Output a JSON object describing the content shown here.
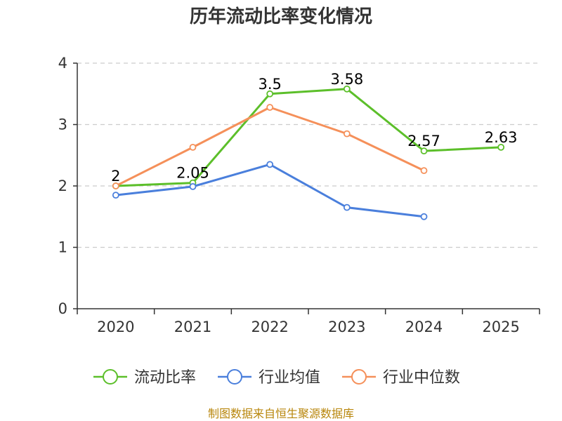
{
  "chart_data": {
    "type": "line",
    "title": "历年流动比率变化情况",
    "categories": [
      "2020",
      "2021",
      "2022",
      "2023",
      "2024",
      "2025"
    ],
    "yticks": [
      "0",
      "1",
      "2",
      "3",
      "4"
    ],
    "ylim": [
      0,
      4
    ],
    "grid": true,
    "legend_position": "bottom",
    "series": [
      {
        "name": "流动比率",
        "color": "#5cbf2a",
        "values": [
          2,
          2.05,
          3.5,
          3.58,
          2.57,
          2.63
        ],
        "labels": [
          "2",
          "2.05",
          "3.5",
          "3.58",
          "2.57",
          "2.63"
        ],
        "show_labels": true
      },
      {
        "name": "行业均值",
        "color": "#4a7fdc",
        "values": [
          1.85,
          1.99,
          2.35,
          1.65,
          1.5,
          null
        ],
        "show_labels": false
      },
      {
        "name": "行业中位数",
        "color": "#f5905a",
        "values": [
          2.0,
          2.63,
          3.28,
          2.85,
          2.25,
          null
        ],
        "show_labels": false
      }
    ],
    "source": "制图数据来自恒生聚源数据库"
  }
}
